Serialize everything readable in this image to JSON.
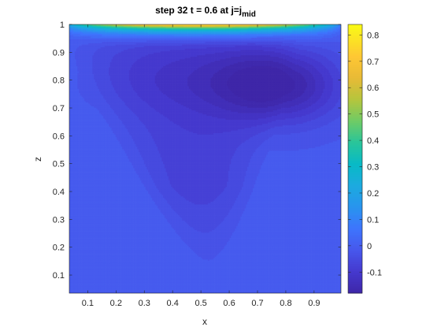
{
  "chart_data": {
    "type": "heatmap",
    "title": {
      "main": "step 32 t = 0.6 at j=j",
      "subscript": "mid"
    },
    "xlabel": "x",
    "ylabel": "z",
    "xlim": [
      0.035,
      0.995
    ],
    "ylim": [
      0.035,
      1.0
    ],
    "xticks": [
      0.1,
      0.2,
      0.3,
      0.4,
      0.5,
      0.6,
      0.7,
      0.8,
      0.9
    ],
    "xtick_labels": [
      "0.1",
      "0.2",
      "0.3",
      "0.4",
      "0.5",
      "0.6",
      "0.7",
      "0.8",
      "0.9"
    ],
    "yticks": [
      0.1,
      0.2,
      0.3,
      0.4,
      0.5,
      0.6,
      0.7,
      0.8,
      0.9,
      1.0
    ],
    "ytick_labels": [
      "0.1",
      "0.2",
      "0.3",
      "0.4",
      "0.5",
      "0.6",
      "0.7",
      "0.8",
      "0.9",
      "1"
    ],
    "colorbar": {
      "limits": [
        -0.18,
        0.84
      ],
      "ticks": [
        -0.1,
        0,
        0.1,
        0.2,
        0.3,
        0.4,
        0.5,
        0.6,
        0.7,
        0.8
      ],
      "tick_labels": [
        "-0.1",
        "0",
        "0.1",
        "0.2",
        "0.3",
        "0.4",
        "0.5",
        "0.6",
        "0.7",
        "0.8"
      ],
      "colormap": "parula"
    },
    "field_features": {
      "background_level": -0.01,
      "lid_max": 0.84,
      "vortex_core_min": -0.17,
      "vortex_core_x": 0.78,
      "vortex_core_z": 0.78
    }
  }
}
